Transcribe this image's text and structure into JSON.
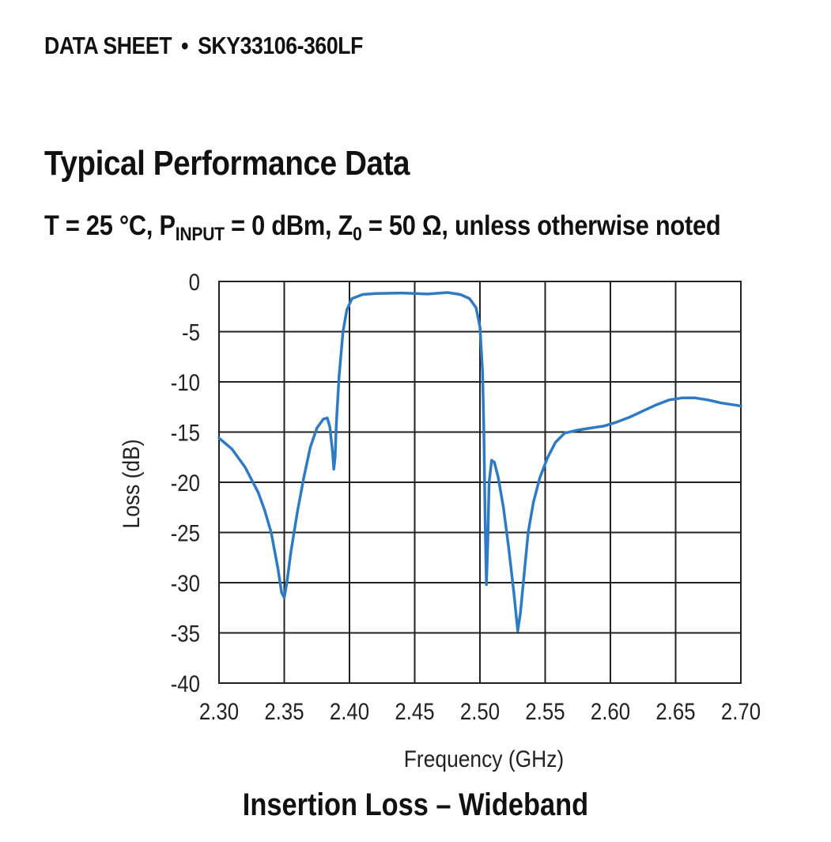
{
  "header": {
    "doc_type": "DATA SHEET",
    "separator": "•",
    "part_number": "SKY33106-360LF"
  },
  "section": {
    "title": "Typical Performance Data"
  },
  "conditions": {
    "t": "T = 25 °C, P",
    "p_sub": "INPUT",
    "mid": " = 0 dBm, Z",
    "z_sub": "0",
    "end": " = 50 Ω, unless otherwise noted"
  },
  "chart_data": {
    "type": "line",
    "title": "Insertion Loss – Wideband",
    "xlabel": "Frequency (GHz)",
    "ylabel": "Loss (dB)",
    "xlim": [
      2.3,
      2.7
    ],
    "ylim": [
      -40,
      0
    ],
    "x_ticks": [
      "2.30",
      "2.35",
      "2.40",
      "2.45",
      "2.50",
      "2.55",
      "2.60",
      "2.65",
      "2.70"
    ],
    "y_ticks": [
      "0",
      "-5",
      "-10",
      "-15",
      "-20",
      "-25",
      "-30",
      "-35",
      "-40"
    ],
    "grid": true,
    "line_color": "#2e7bc4",
    "series": [
      {
        "points": [
          [
            2.3,
            -15.6
          ],
          [
            2.31,
            -16.7
          ],
          [
            2.32,
            -18.5
          ],
          [
            2.33,
            -21.0
          ],
          [
            2.335,
            -22.8
          ],
          [
            2.34,
            -25.0
          ],
          [
            2.345,
            -28.5
          ],
          [
            2.348,
            -31.0
          ],
          [
            2.35,
            -31.5
          ],
          [
            2.352,
            -30.0
          ],
          [
            2.355,
            -27.0
          ],
          [
            2.36,
            -23.0
          ],
          [
            2.365,
            -19.5
          ],
          [
            2.37,
            -16.5
          ],
          [
            2.375,
            -14.6
          ],
          [
            2.38,
            -13.7
          ],
          [
            2.383,
            -13.6
          ],
          [
            2.385,
            -14.5
          ],
          [
            2.387,
            -17.0
          ],
          [
            2.388,
            -18.7
          ],
          [
            2.389,
            -17.5
          ],
          [
            2.39,
            -14.0
          ],
          [
            2.392,
            -9.5
          ],
          [
            2.395,
            -5.0
          ],
          [
            2.398,
            -2.8
          ],
          [
            2.402,
            -1.7
          ],
          [
            2.41,
            -1.3
          ],
          [
            2.42,
            -1.2
          ],
          [
            2.44,
            -1.15
          ],
          [
            2.46,
            -1.25
          ],
          [
            2.475,
            -1.1
          ],
          [
            2.485,
            -1.3
          ],
          [
            2.492,
            -1.7
          ],
          [
            2.497,
            -2.6
          ],
          [
            2.5,
            -4.5
          ],
          [
            2.502,
            -9.0
          ],
          [
            2.503,
            -15.0
          ],
          [
            2.504,
            -24.0
          ],
          [
            2.505,
            -30.2
          ],
          [
            2.506,
            -26.0
          ],
          [
            2.507,
            -20.0
          ],
          [
            2.509,
            -17.8
          ],
          [
            2.511,
            -18.0
          ],
          [
            2.514,
            -19.5
          ],
          [
            2.518,
            -22.5
          ],
          [
            2.522,
            -26.5
          ],
          [
            2.526,
            -31.0
          ],
          [
            2.529,
            -34.8
          ],
          [
            2.531,
            -33.0
          ],
          [
            2.534,
            -29.0
          ],
          [
            2.537,
            -25.0
          ],
          [
            2.541,
            -22.0
          ],
          [
            2.546,
            -19.5
          ],
          [
            2.552,
            -17.5
          ],
          [
            2.558,
            -16.0
          ],
          [
            2.565,
            -15.1
          ],
          [
            2.575,
            -14.8
          ],
          [
            2.585,
            -14.6
          ],
          [
            2.595,
            -14.4
          ],
          [
            2.605,
            -14.0
          ],
          [
            2.615,
            -13.5
          ],
          [
            2.625,
            -12.9
          ],
          [
            2.635,
            -12.3
          ],
          [
            2.645,
            -11.8
          ],
          [
            2.655,
            -11.6
          ],
          [
            2.665,
            -11.6
          ],
          [
            2.675,
            -11.8
          ],
          [
            2.685,
            -12.1
          ],
          [
            2.695,
            -12.3
          ],
          [
            2.7,
            -12.4
          ]
        ]
      }
    ]
  }
}
